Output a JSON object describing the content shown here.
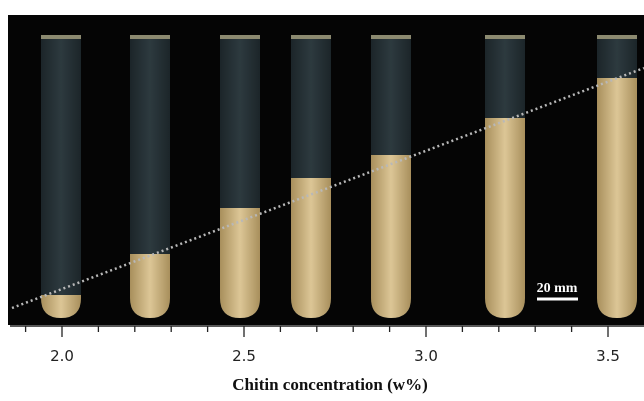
{
  "image": {
    "scale_bar": "20 mm"
  },
  "axis": {
    "title": "Chitin concentration (w%)",
    "ticks": [
      "2.0",
      "2.5",
      "3.0",
      "3.5"
    ]
  }
}
